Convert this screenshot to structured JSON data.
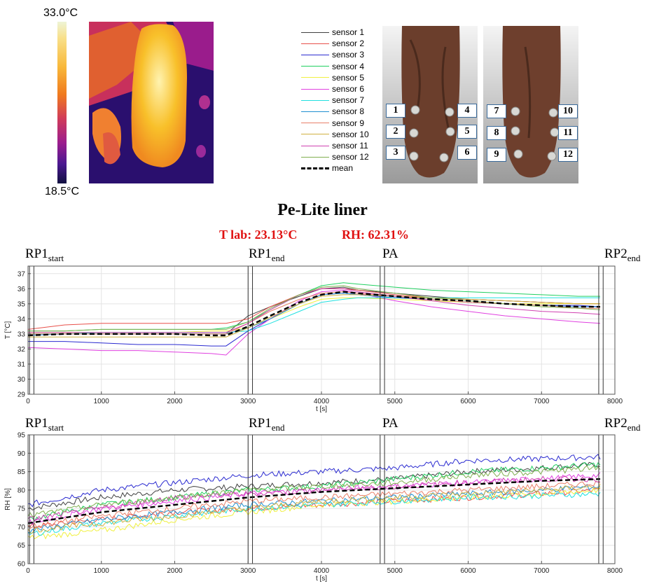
{
  "thermal": {
    "max_label": "33.0°C",
    "min_label": "18.5°C"
  },
  "legend": {
    "items": [
      {
        "label": "sensor 1",
        "color": "#404040"
      },
      {
        "label": "sensor 2",
        "color": "#e8504a"
      },
      {
        "label": "sensor 3",
        "color": "#2a2ad0"
      },
      {
        "label": "sensor 4",
        "color": "#20d060"
      },
      {
        "label": "sensor 5",
        "color": "#f0f040"
      },
      {
        "label": "sensor 6",
        "color": "#e040e0"
      },
      {
        "label": "sensor 7",
        "color": "#20e0e0"
      },
      {
        "label": "sensor 8",
        "color": "#2090d0"
      },
      {
        "label": "sensor 9",
        "color": "#e8806a"
      },
      {
        "label": "sensor 10",
        "color": "#d0b040"
      },
      {
        "label": "sensor 11",
        "color": "#d040b0"
      },
      {
        "label": "sensor 12",
        "color": "#80b050"
      },
      {
        "label": "mean",
        "color": "#000000"
      }
    ]
  },
  "photo_tags": [
    "1",
    "2",
    "3",
    "4",
    "5",
    "6",
    "7",
    "8",
    "9",
    "10",
    "11",
    "12"
  ],
  "title": "Pe-Lite liner",
  "conditions": {
    "t_lab": "T lab: 23.13°C",
    "rh": "RH: 62.31%"
  },
  "phases": [
    {
      "main": "RP1",
      "sub": "start"
    },
    {
      "main": "RP1",
      "sub": "end"
    },
    {
      "main": "PA",
      "sub": ""
    },
    {
      "main": "RP2",
      "sub": "end"
    }
  ],
  "chart_data": [
    {
      "type": "line",
      "ylabel": "T [°C]",
      "xlabel": "t [s]",
      "xlim": [
        0,
        8000
      ],
      "ylim": [
        29,
        37.5
      ],
      "xticks": [
        0,
        1000,
        2000,
        3000,
        4000,
        5000,
        6000,
        7000,
        8000
      ],
      "yticks": [
        29,
        30,
        31,
        32,
        33,
        34,
        35,
        36,
        37
      ],
      "phase_lines": [
        20,
        80,
        3000,
        3060,
        4800,
        4860,
        7780,
        7840
      ],
      "grid": true,
      "x": [
        0,
        500,
        1000,
        1500,
        2000,
        2500,
        2700,
        3000,
        3300,
        3700,
        4000,
        4300,
        4500,
        5000,
        5500,
        6000,
        6500,
        7000,
        7500,
        7800
      ],
      "series": [
        {
          "name": "sensor 1",
          "color": "#404040",
          "values": [
            33.0,
            33.0,
            33.0,
            33.0,
            33.0,
            33.0,
            33.0,
            34.2,
            34.8,
            35.5,
            36.0,
            36.1,
            35.9,
            35.7,
            35.5,
            35.3,
            35.2,
            35.1,
            35.0,
            35.0
          ]
        },
        {
          "name": "sensor 2",
          "color": "#e8504a",
          "values": [
            33.3,
            33.6,
            33.7,
            33.7,
            33.7,
            33.7,
            33.7,
            34.0,
            34.8,
            35.6,
            36.0,
            36.0,
            35.9,
            35.6,
            35.4,
            35.3,
            35.2,
            35.1,
            35.0,
            35.0
          ]
        },
        {
          "name": "sensor 3",
          "color": "#2a2ad0",
          "values": [
            32.5,
            32.5,
            32.4,
            32.3,
            32.3,
            32.2,
            32.2,
            33.2,
            34.0,
            35.0,
            35.6,
            35.7,
            35.6,
            35.4,
            35.3,
            35.1,
            35.0,
            34.9,
            34.9,
            34.8
          ]
        },
        {
          "name": "sensor 4",
          "color": "#20d060",
          "values": [
            33.2,
            33.2,
            33.3,
            33.3,
            33.3,
            33.3,
            33.4,
            33.8,
            34.6,
            35.6,
            36.2,
            36.4,
            36.3,
            36.1,
            35.9,
            35.8,
            35.7,
            35.6,
            35.5,
            35.5
          ]
        },
        {
          "name": "sensor 5",
          "color": "#f0f040",
          "values": [
            33.1,
            33.1,
            33.1,
            33.1,
            33.1,
            33.2,
            33.2,
            33.4,
            34.0,
            34.8,
            35.3,
            35.4,
            35.4,
            35.3,
            35.2,
            35.1,
            35.0,
            35.0,
            35.0,
            35.0
          ]
        },
        {
          "name": "sensor 6",
          "color": "#e040e0",
          "values": [
            32.1,
            32.0,
            31.9,
            31.9,
            31.8,
            31.7,
            31.6,
            33.0,
            34.0,
            35.2,
            35.8,
            35.9,
            35.7,
            35.2,
            34.8,
            34.5,
            34.2,
            34.0,
            33.8,
            33.7
          ]
        },
        {
          "name": "sensor 7",
          "color": "#20e0e0",
          "values": [
            33.0,
            33.0,
            33.1,
            33.1,
            33.1,
            33.1,
            33.1,
            33.2,
            33.7,
            34.5,
            35.1,
            35.3,
            35.4,
            35.4,
            35.4,
            35.4,
            35.4,
            35.4,
            35.4,
            35.4
          ]
        },
        {
          "name": "sensor 8",
          "color": "#2090d0",
          "values": [
            32.9,
            33.0,
            33.0,
            33.0,
            33.0,
            33.0,
            33.0,
            33.4,
            34.0,
            35.0,
            35.6,
            35.7,
            35.6,
            35.4,
            35.3,
            35.1,
            35.0,
            34.9,
            34.8,
            34.8
          ]
        },
        {
          "name": "sensor 9",
          "color": "#e8806a",
          "values": [
            33.0,
            33.0,
            33.0,
            33.0,
            33.0,
            33.0,
            33.0,
            33.7,
            34.5,
            35.3,
            35.7,
            35.8,
            35.7,
            35.5,
            35.3,
            35.1,
            35.0,
            34.9,
            34.7,
            34.7
          ]
        },
        {
          "name": "sensor 10",
          "color": "#d0b040",
          "values": [
            32.8,
            32.8,
            32.8,
            32.8,
            32.8,
            32.8,
            32.8,
            33.4,
            34.1,
            35.0,
            35.5,
            35.6,
            35.6,
            35.5,
            35.4,
            35.3,
            35.2,
            35.1,
            35.0,
            35.0
          ]
        },
        {
          "name": "sensor 11",
          "color": "#d040b0",
          "values": [
            33.1,
            33.1,
            33.1,
            33.1,
            33.1,
            33.1,
            33.1,
            33.7,
            34.6,
            35.6,
            36.0,
            36.0,
            35.8,
            35.5,
            35.2,
            34.9,
            34.7,
            34.5,
            34.4,
            34.3
          ]
        },
        {
          "name": "sensor 12",
          "color": "#80b050",
          "values": [
            33.2,
            33.2,
            33.3,
            33.3,
            33.3,
            33.3,
            33.3,
            33.8,
            34.7,
            35.6,
            36.1,
            36.2,
            36.0,
            35.7,
            35.4,
            35.2,
            35.0,
            34.8,
            34.7,
            34.6
          ]
        },
        {
          "name": "mean",
          "color": "#000000",
          "dashed": true,
          "values": [
            32.9,
            33.0,
            33.0,
            33.0,
            33.0,
            32.9,
            32.9,
            33.5,
            34.2,
            35.1,
            35.6,
            35.8,
            35.7,
            35.5,
            35.3,
            35.2,
            35.0,
            34.9,
            34.8,
            34.8
          ]
        }
      ]
    },
    {
      "type": "line",
      "ylabel": "RH [%]",
      "xlabel": "t [s]",
      "xlim": [
        0,
        8000
      ],
      "ylim": [
        60,
        95
      ],
      "xticks": [
        0,
        1000,
        2000,
        3000,
        4000,
        5000,
        6000,
        7000,
        8000
      ],
      "yticks": [
        60,
        65,
        70,
        75,
        80,
        85,
        90,
        95
      ],
      "phase_lines": [
        20,
        80,
        3000,
        3060,
        4800,
        4860,
        7780,
        7840
      ],
      "grid": true,
      "x": [
        0,
        1000,
        2000,
        3000,
        4000,
        5000,
        6000,
        7000,
        7800
      ],
      "series": [
        {
          "name": "sensor 1",
          "color": "#404040",
          "values": [
            75,
            78,
            80,
            81,
            82,
            83,
            85,
            86,
            87
          ]
        },
        {
          "name": "sensor 2",
          "color": "#e8504a",
          "values": [
            70,
            72,
            74,
            75,
            76,
            77,
            78,
            79,
            80
          ]
        },
        {
          "name": "sensor 3",
          "color": "#2a2ad0",
          "values": [
            76,
            80,
            82,
            84,
            85,
            86,
            88,
            88.5,
            89
          ]
        },
        {
          "name": "sensor 4",
          "color": "#20d060",
          "values": [
            72,
            76,
            78,
            80,
            81,
            83,
            85,
            86,
            87
          ]
        },
        {
          "name": "sensor 5",
          "color": "#f0f040",
          "values": [
            67,
            69,
            72,
            74,
            76,
            77,
            78,
            79,
            80
          ]
        },
        {
          "name": "sensor 6",
          "color": "#e040e0",
          "values": [
            71,
            75,
            77,
            79,
            80,
            81,
            82,
            83,
            84
          ]
        },
        {
          "name": "sensor 7",
          "color": "#20e0e0",
          "values": [
            68,
            71,
            73,
            75,
            76,
            77,
            78,
            78.5,
            79
          ]
        },
        {
          "name": "sensor 8",
          "color": "#2090d0",
          "values": [
            69,
            72,
            74,
            76,
            77,
            78,
            79,
            80,
            81
          ]
        },
        {
          "name": "sensor 9",
          "color": "#e8806a",
          "values": [
            70,
            73,
            75,
            77,
            78,
            79,
            80,
            81,
            82
          ]
        },
        {
          "name": "sensor 10",
          "color": "#d0b040",
          "values": [
            69,
            71,
            73,
            75,
            77,
            78,
            79,
            80,
            81
          ]
        },
        {
          "name": "sensor 11",
          "color": "#d040b0",
          "values": [
            72,
            75,
            78,
            79,
            80,
            81,
            82,
            83,
            83
          ]
        },
        {
          "name": "sensor 12",
          "color": "#80b050",
          "values": [
            73,
            76,
            78,
            80,
            81,
            82,
            84,
            85,
            86
          ]
        },
        {
          "name": "mean",
          "color": "#000000",
          "dashed": true,
          "values": [
            71,
            74,
            76,
            78,
            79.5,
            80.5,
            81.5,
            82.5,
            83
          ]
        }
      ]
    }
  ]
}
